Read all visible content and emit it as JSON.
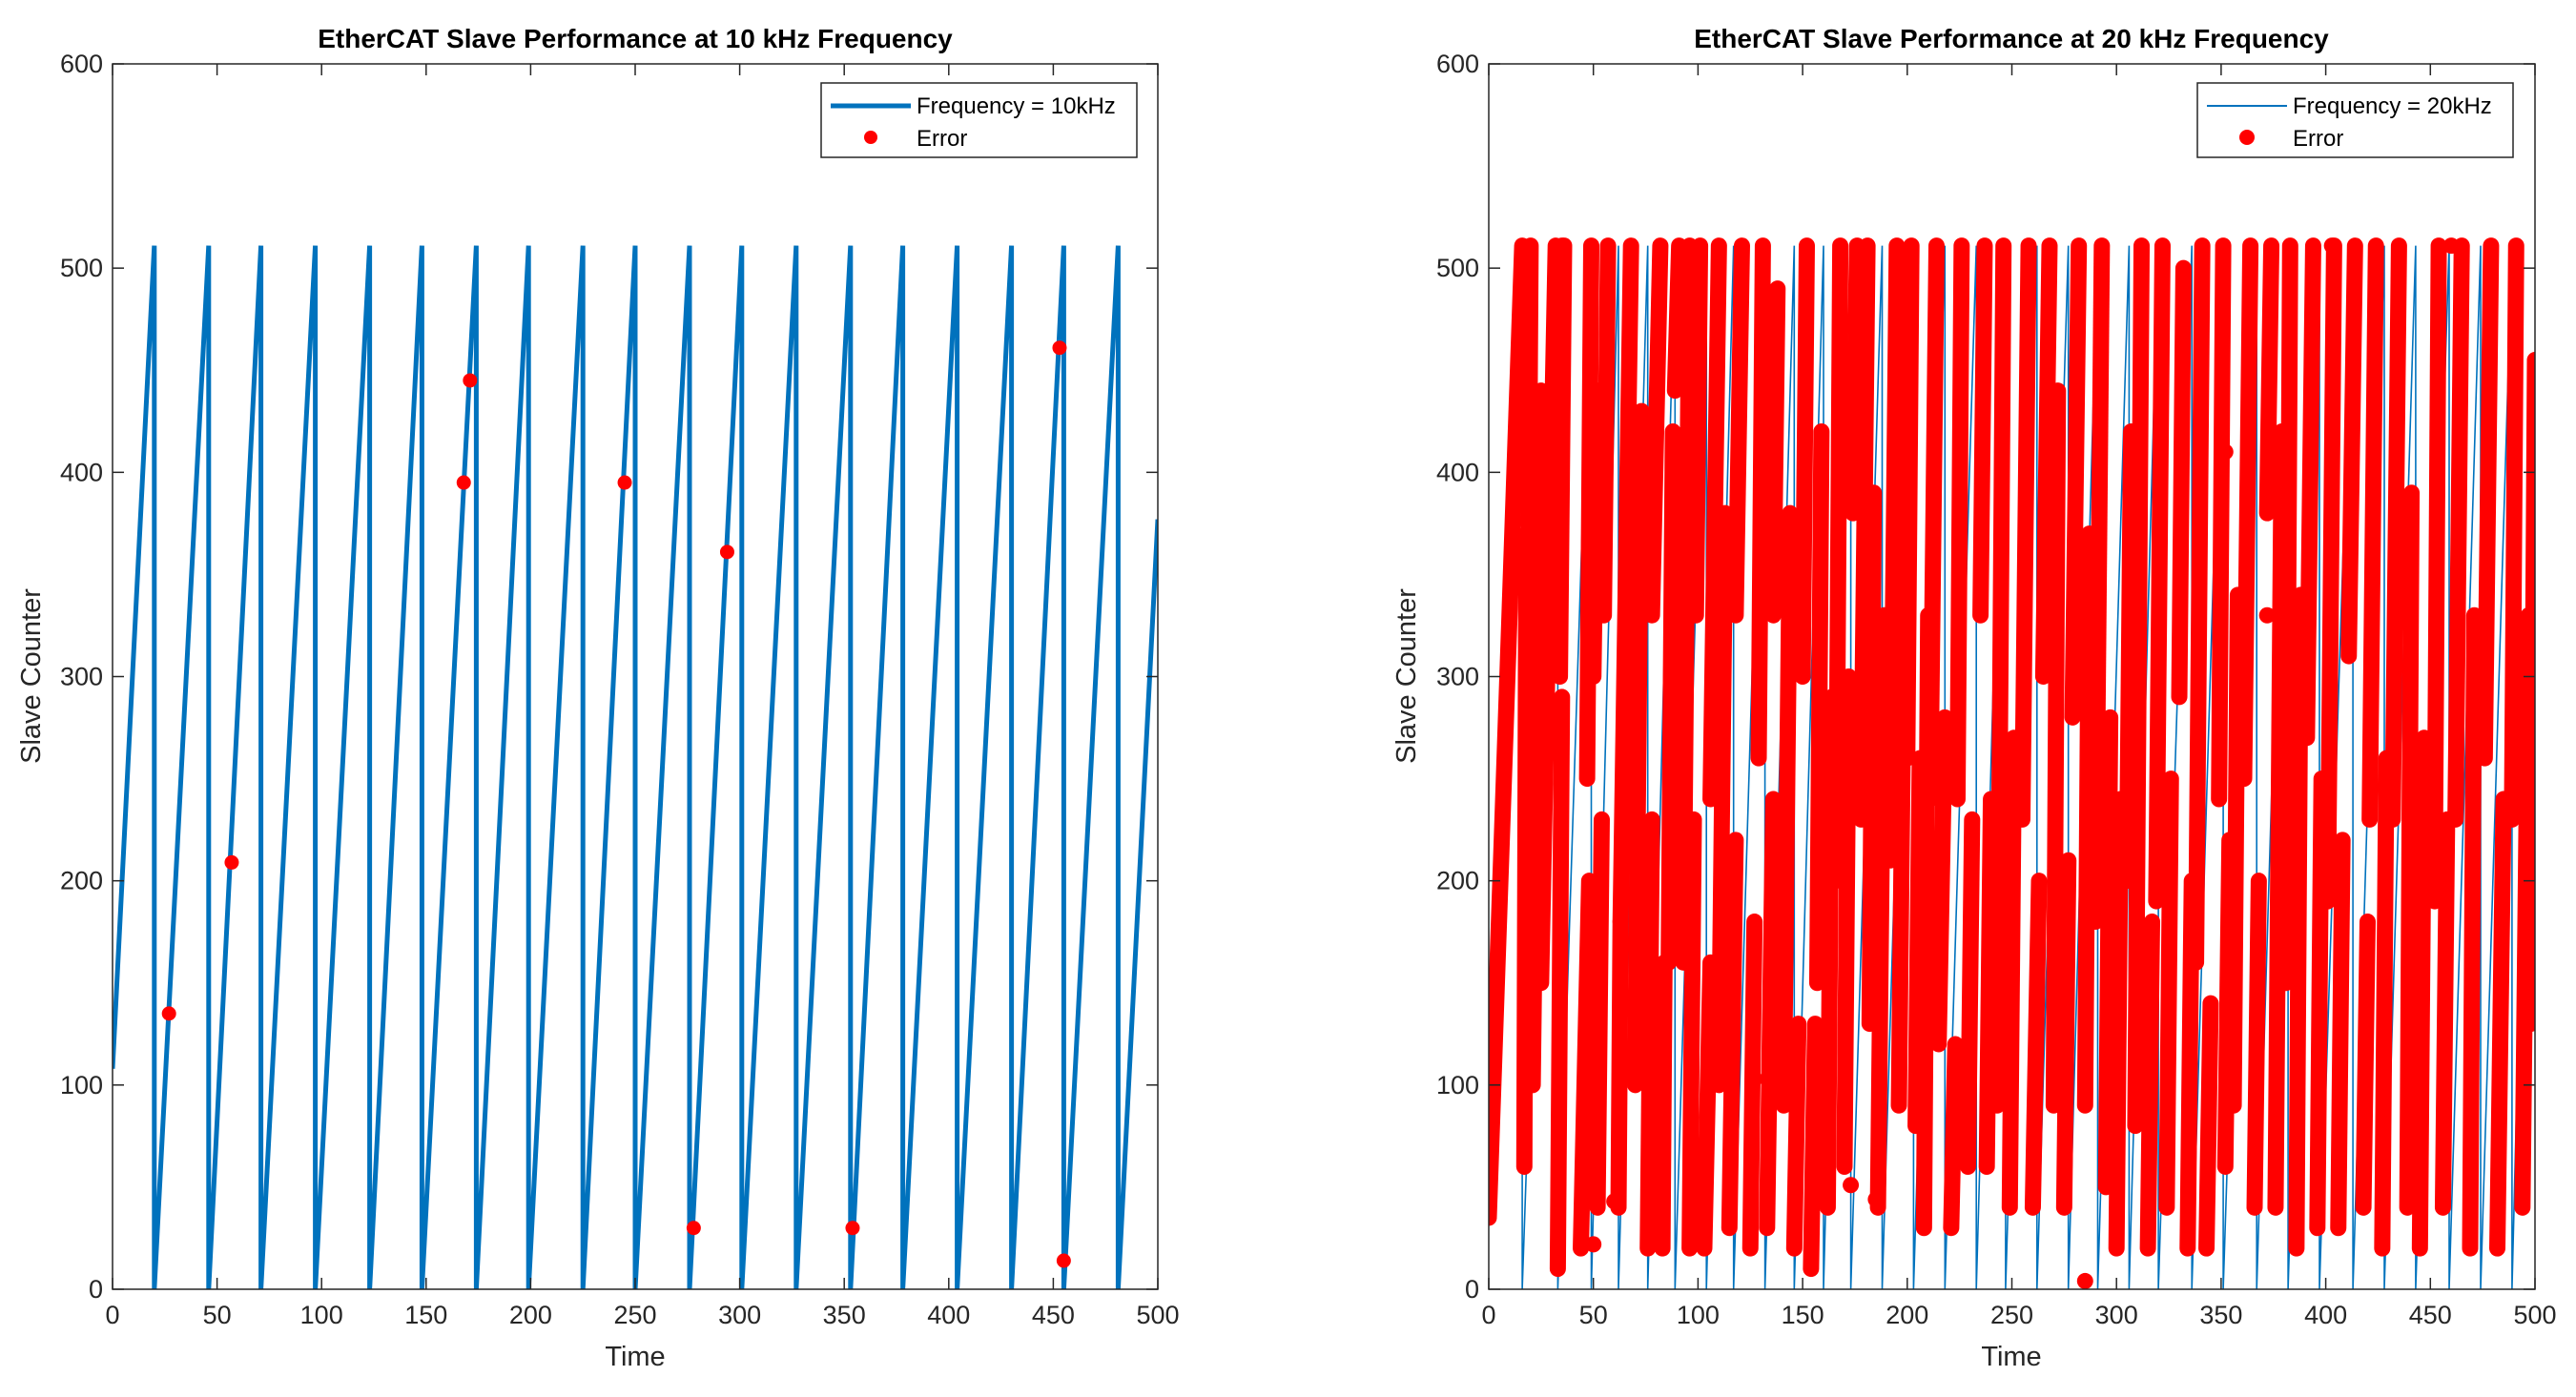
{
  "chart_data": [
    {
      "type": "line",
      "title": "EtherCAT Slave Performance at 10 kHz Frequency",
      "xlabel": "Time",
      "ylabel": "Slave Counter",
      "xlim": [
        0,
        500
      ],
      "ylim": [
        0,
        600
      ],
      "xticks": [
        "0",
        "50",
        "100",
        "150",
        "200",
        "250",
        "300",
        "350",
        "400",
        "450",
        "500"
      ],
      "yticks": [
        "0",
        "100",
        "200",
        "300",
        "400",
        "500",
        "600"
      ],
      "grid": false,
      "legend_position": "top-right",
      "series": [
        {
          "name": "Frequency = 10kHz",
          "kind": "sawtooth",
          "color": "#0072BD",
          "start_value": 108,
          "max_value": 511,
          "wrap_times": [
            20,
            46,
            71,
            97,
            123,
            148,
            174,
            199,
            225,
            250,
            276,
            301,
            327,
            353,
            378,
            404,
            430,
            455,
            481
          ],
          "end_value": 377
        },
        {
          "name": "Error",
          "kind": "points",
          "color": "#FF0000",
          "x": [
            27,
            57,
            168,
            171,
            245,
            294,
            278,
            354,
            453,
            455
          ],
          "y": [
            135,
            209,
            395,
            445,
            395,
            361,
            30,
            30,
            461,
            14
          ]
        }
      ]
    },
    {
      "type": "line",
      "title": "EtherCAT Slave Performance at 20 kHz Frequency",
      "xlabel": "Time",
      "ylabel": "Slave Counter",
      "xlim": [
        0,
        500
      ],
      "ylim": [
        0,
        600
      ],
      "xticks": [
        "0",
        "50",
        "100",
        "150",
        "200",
        "250",
        "300",
        "350",
        "400",
        "450",
        "500"
      ],
      "yticks": [
        "0",
        "100",
        "200",
        "300",
        "400",
        "500",
        "600"
      ],
      "grid": false,
      "legend_position": "top-right",
      "series": [
        {
          "name": "Frequency = 20kHz",
          "kind": "sawtooth",
          "color": "#0072BD",
          "start_value": 35,
          "max_value": 511,
          "wrap_times": [
            16,
            33,
            49,
            62,
            76,
            89,
            104,
            117,
            132,
            146,
            160,
            173,
            188,
            203,
            218,
            233,
            247,
            262,
            277,
            291,
            306,
            320,
            336,
            351,
            367,
            382,
            397,
            413,
            428,
            443,
            459,
            474,
            489
          ],
          "end_value": 455
        },
        {
          "name": "Error",
          "kind": "dense-segments",
          "color": "#FF0000",
          "segments": [
            [
              0,
              16,
              35,
              511
            ],
            [
              17,
              18,
              60,
              370
            ],
            [
              18,
              20,
              200,
              511
            ],
            [
              21,
              25,
              100,
              440
            ],
            [
              25,
              32,
              150,
              511
            ],
            [
              33,
              35,
              10,
              290
            ],
            [
              34,
              36,
              300,
              511
            ],
            [
              44,
              48,
              20,
              200
            ],
            [
              47,
              49,
              250,
              511
            ],
            [
              50,
              52,
              300,
              440
            ],
            [
              52,
              54,
              40,
              230
            ],
            [
              55,
              57,
              330,
              511
            ],
            [
              62,
              63,
              40,
              180
            ],
            [
              63,
              68,
              180,
              511
            ],
            [
              70,
              73,
              100,
              430
            ],
            [
              76,
              78,
              20,
              230
            ],
            [
              78,
              82,
              330,
              511
            ],
            [
              83,
              84,
              20,
              160
            ],
            [
              86,
              88,
              160,
              420
            ],
            [
              89,
              91,
              440,
              511
            ],
            [
              93,
              96,
              160,
              511
            ],
            [
              96,
              98,
              20,
              230
            ],
            [
              99,
              101,
              330,
              511
            ],
            [
              103,
              106,
              20,
              160
            ],
            [
              106,
              110,
              240,
              511
            ],
            [
              110,
              113,
              100,
              380
            ],
            [
              115,
              118,
              30,
              220
            ],
            [
              118,
              121,
              330,
              511
            ],
            [
              125,
              127,
              20,
              180
            ],
            [
              129,
              131,
              260,
              511
            ],
            [
              133,
              136,
              30,
              240
            ],
            [
              136,
              138,
              330,
              490
            ],
            [
              141,
              144,
              90,
              380
            ],
            [
              146,
              148,
              20,
              130
            ],
            [
              150,
              152,
              300,
              511
            ],
            [
              154,
              156,
              10,
              130
            ],
            [
              157,
              159,
              150,
              420
            ],
            [
              162,
              164,
              40,
              290
            ],
            [
              166,
              168,
              200,
              511
            ],
            [
              170,
              172,
              60,
              300
            ],
            [
              174,
              176,
              380,
              511
            ],
            [
              178,
              181,
              230,
              511
            ],
            [
              182,
              184,
              130,
              390
            ],
            [
              186,
              189,
              40,
              330
            ],
            [
              192,
              195,
              210,
              511
            ],
            [
              196,
              198,
              90,
              280
            ],
            [
              200,
              202,
              260,
              511
            ],
            [
              204,
              206,
              80,
              260
            ],
            [
              208,
              210,
              30,
              330
            ],
            [
              211,
              214,
              240,
              511
            ],
            [
              215,
              218,
              120,
              280
            ],
            [
              221,
              223,
              30,
              120
            ],
            [
              224,
              226,
              240,
              511
            ],
            [
              229,
              231,
              60,
              230
            ],
            [
              235,
              237,
              330,
              511
            ],
            [
              238,
              240,
              60,
              240
            ],
            [
              243,
              246,
              90,
              511
            ],
            [
              249,
              251,
              40,
              270
            ],
            [
              255,
              258,
              230,
              511
            ],
            [
              260,
              263,
              40,
              200
            ],
            [
              265,
              268,
              300,
              511
            ],
            [
              270,
              272,
              90,
              440
            ],
            [
              275,
              277,
              40,
              210
            ],
            [
              279,
              282,
              280,
              511
            ],
            [
              285,
              287,
              90,
              370
            ],
            [
              290,
              293,
              180,
              511
            ],
            [
              295,
              297,
              50,
              280
            ],
            [
              300,
              302,
              20,
              240
            ],
            [
              305,
              307,
              200,
              420
            ],
            [
              309,
              312,
              80,
              511
            ],
            [
              315,
              317,
              20,
              180
            ],
            [
              319,
              322,
              190,
              511
            ],
            [
              324,
              326,
              40,
              250
            ],
            [
              330,
              332,
              290,
              500
            ],
            [
              334,
              336,
              20,
              200
            ],
            [
              338,
              341,
              160,
              511
            ],
            [
              343,
              345,
              20,
              140
            ],
            [
              349,
              351,
              240,
              511
            ],
            [
              352,
              354,
              60,
              220
            ],
            [
              356,
              358,
              90,
              340
            ],
            [
              361,
              364,
              250,
              511
            ],
            [
              366,
              368,
              40,
              200
            ],
            [
              372,
              374,
              380,
              511
            ],
            [
              376,
              379,
              40,
              420
            ],
            [
              381,
              383,
              150,
              511
            ],
            [
              386,
              388,
              20,
              340
            ],
            [
              391,
              394,
              270,
              511
            ],
            [
              396,
              398,
              30,
              250
            ],
            [
              401,
              404,
              190,
              511
            ],
            [
              406,
              408,
              30,
              220
            ],
            [
              411,
              414,
              310,
              511
            ],
            [
              418,
              420,
              40,
              180
            ],
            [
              421,
              424,
              230,
              511
            ],
            [
              427,
              429,
              20,
              260
            ],
            [
              432,
              435,
              230,
              511
            ],
            [
              439,
              441,
              40,
              390
            ],
            [
              445,
              447,
              20,
              270
            ],
            [
              452,
              454,
              190,
              511
            ],
            [
              456,
              458,
              40,
              230
            ],
            [
              462,
              465,
              230,
              511
            ],
            [
              469,
              471,
              20,
              330
            ],
            [
              476,
              479,
              260,
              511
            ],
            [
              482,
              485,
              20,
              240
            ],
            [
              489,
              491,
              230,
              511
            ],
            [
              494,
              497,
              40,
              330
            ],
            [
              498,
              500,
              130,
              455
            ]
          ],
          "points": {
            "x": [
              35,
              50,
              60,
              92,
              97,
              127,
              173,
              185,
              206,
              213,
              246,
              285,
              352,
              372,
              403,
              460
            ],
            "y": [
              511,
              22,
              43,
              239,
              337,
              103,
              51,
              44,
              127,
              133,
              174,
              4,
              410,
              330,
              511,
              511
            ]
          }
        }
      ]
    }
  ]
}
